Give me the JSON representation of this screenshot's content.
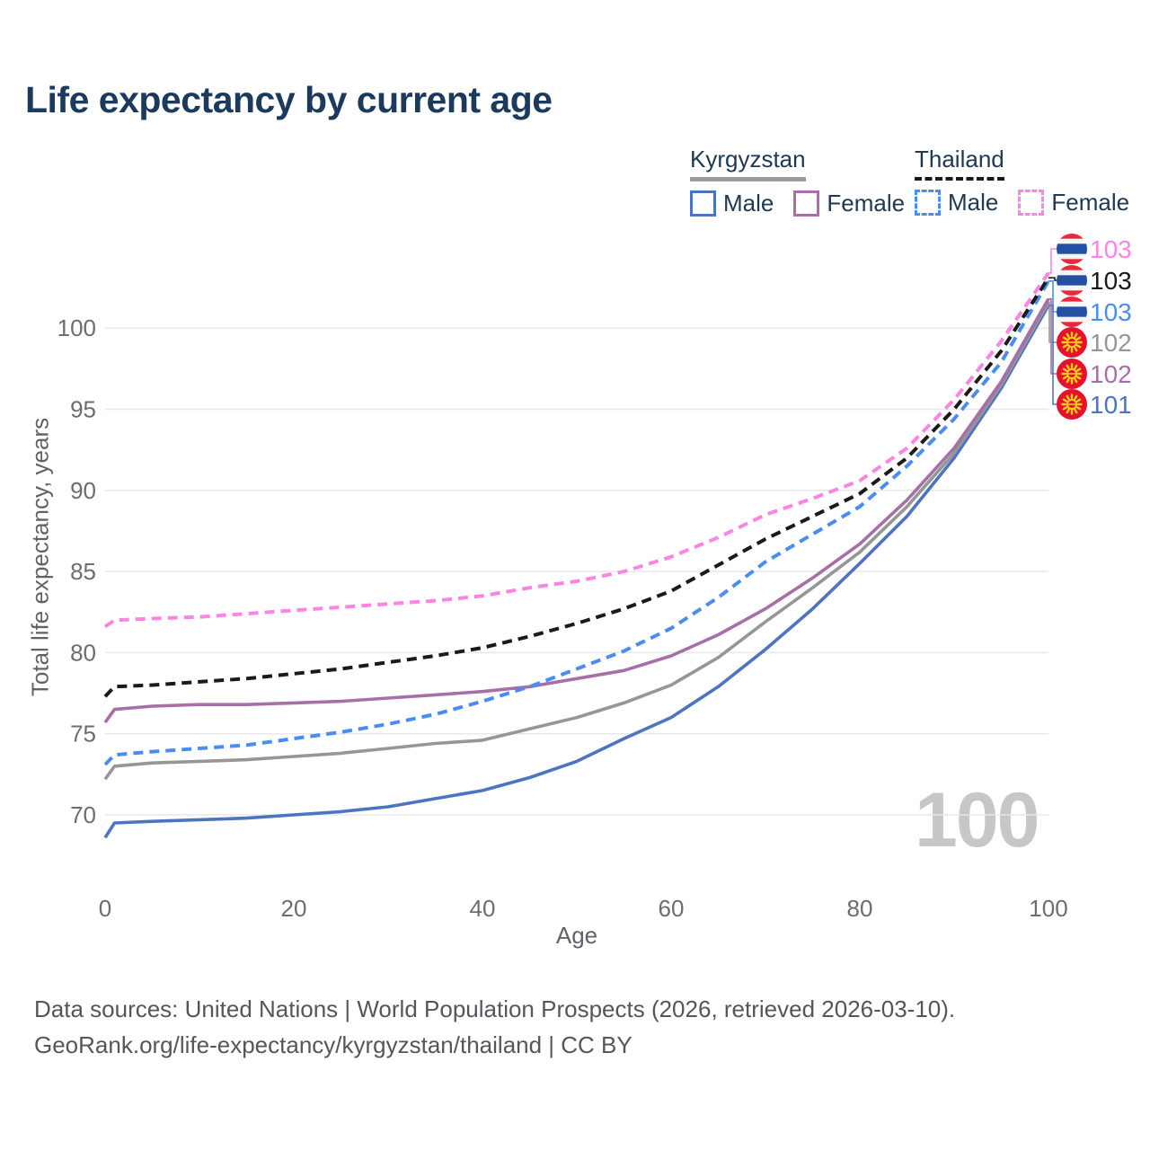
{
  "page": {
    "title": "Life expectancy by current age",
    "watermark_age": "100"
  },
  "legend": {
    "groups": [
      {
        "country": "Kyrgyzstan",
        "line_style": "solid",
        "underline_color": "#9a9a9a",
        "items": [
          {
            "label": "Male",
            "color": "#4d74c0"
          },
          {
            "label": "Female",
            "color": "#a76fa8"
          }
        ]
      },
      {
        "country": "Thailand",
        "line_style": "dashed",
        "underline_color": "#1a1a1a",
        "items": [
          {
            "label": "Male",
            "color": "#4a8df2"
          },
          {
            "label": "Female",
            "color": "#fc85e4"
          }
        ]
      }
    ]
  },
  "chart_data": {
    "type": "line",
    "title": "Life expectancy by current age",
    "xlabel": "Age",
    "ylabel": "Total life expectancy, years",
    "x_ticks": [
      0,
      20,
      40,
      60,
      80,
      100
    ],
    "y_ticks": [
      70,
      75,
      80,
      85,
      90,
      95,
      100
    ],
    "xlim": [
      0,
      100
    ],
    "ylim": [
      68,
      104
    ],
    "grid": "horizontal",
    "legend_position": "top-right",
    "x": [
      0,
      1,
      5,
      10,
      15,
      20,
      25,
      30,
      35,
      40,
      45,
      50,
      55,
      60,
      65,
      70,
      75,
      80,
      85,
      90,
      95,
      100
    ],
    "series": [
      {
        "name": "Kyrgyzstan Male",
        "country": "Kyrgyzstan",
        "sex": "Male",
        "color": "#4d74c0",
        "dashed": false,
        "values": [
          68.6,
          69.5,
          69.6,
          69.7,
          69.8,
          70.0,
          70.2,
          70.5,
          71.0,
          71.5,
          72.3,
          73.3,
          74.7,
          76.0,
          77.9,
          80.2,
          82.7,
          85.5,
          88.4,
          92.0,
          96.3,
          101.4
        ]
      },
      {
        "name": "Kyrgyzstan Total",
        "country": "Kyrgyzstan",
        "sex": "Total",
        "color": "#969696",
        "dashed": false,
        "values": [
          72.2,
          73.0,
          73.2,
          73.3,
          73.4,
          73.6,
          73.8,
          74.1,
          74.4,
          74.6,
          75.3,
          76.0,
          76.9,
          78.0,
          79.7,
          81.9,
          84.0,
          86.2,
          89.0,
          92.3,
          96.5,
          101.6
        ]
      },
      {
        "name": "Kyrgyzstan Female",
        "country": "Kyrgyzstan",
        "sex": "Female",
        "color": "#a76fa8",
        "dashed": false,
        "values": [
          75.7,
          76.5,
          76.7,
          76.8,
          76.8,
          76.9,
          77.0,
          77.2,
          77.4,
          77.6,
          77.9,
          78.4,
          78.9,
          79.8,
          81.1,
          82.7,
          84.6,
          86.7,
          89.4,
          92.6,
          96.7,
          101.8
        ]
      },
      {
        "name": "Thailand Male",
        "country": "Thailand",
        "sex": "Male",
        "color": "#4a8df2",
        "dashed": true,
        "values": [
          73.1,
          73.7,
          73.9,
          74.1,
          74.3,
          74.7,
          75.1,
          75.6,
          76.2,
          77.0,
          77.9,
          79.0,
          80.1,
          81.5,
          83.4,
          85.6,
          87.3,
          89.0,
          91.5,
          94.4,
          97.9,
          102.9
        ]
      },
      {
        "name": "Thailand Total",
        "country": "Thailand",
        "sex": "Total",
        "color": "#1a1a1a",
        "dashed": true,
        "values": [
          77.3,
          77.9,
          78.0,
          78.2,
          78.4,
          78.7,
          79.0,
          79.4,
          79.8,
          80.3,
          81.0,
          81.8,
          82.7,
          83.8,
          85.4,
          87.0,
          88.4,
          89.8,
          92.0,
          95.0,
          98.6,
          103.1
        ]
      },
      {
        "name": "Thailand Female",
        "country": "Thailand",
        "sex": "Female",
        "color": "#fc85e4",
        "dashed": true,
        "values": [
          81.6,
          82.0,
          82.1,
          82.2,
          82.4,
          82.6,
          82.8,
          83.0,
          83.2,
          83.5,
          84.0,
          84.4,
          85.0,
          85.9,
          87.1,
          88.5,
          89.5,
          90.6,
          92.6,
          95.6,
          99.2,
          103.4
        ]
      }
    ],
    "end_labels": [
      {
        "label": "103",
        "series": "Thailand Female"
      },
      {
        "label": "103",
        "series": "Thailand Total"
      },
      {
        "label": "103",
        "series": "Thailand Male"
      },
      {
        "label": "102",
        "series": "Kyrgyzstan Total"
      },
      {
        "label": "102",
        "series": "Kyrgyzstan Female"
      },
      {
        "label": "101",
        "series": "Kyrgyzstan Male"
      }
    ],
    "flag_colors": {
      "thailand_red": "#ea2839",
      "thailand_blue": "#2450a4",
      "thailand_white": "#f4f4f4",
      "kyrgyzstan_red": "#e6122d",
      "kyrgyzstan_yellow": "#ffd117"
    }
  },
  "footer": {
    "line1": "Data sources: United Nations | World Population Prospects (2026, retrieved 2026-03-10).",
    "line2": "GeoRank.org/life-expectancy/kyrgyzstan/thailand | CC BY"
  }
}
